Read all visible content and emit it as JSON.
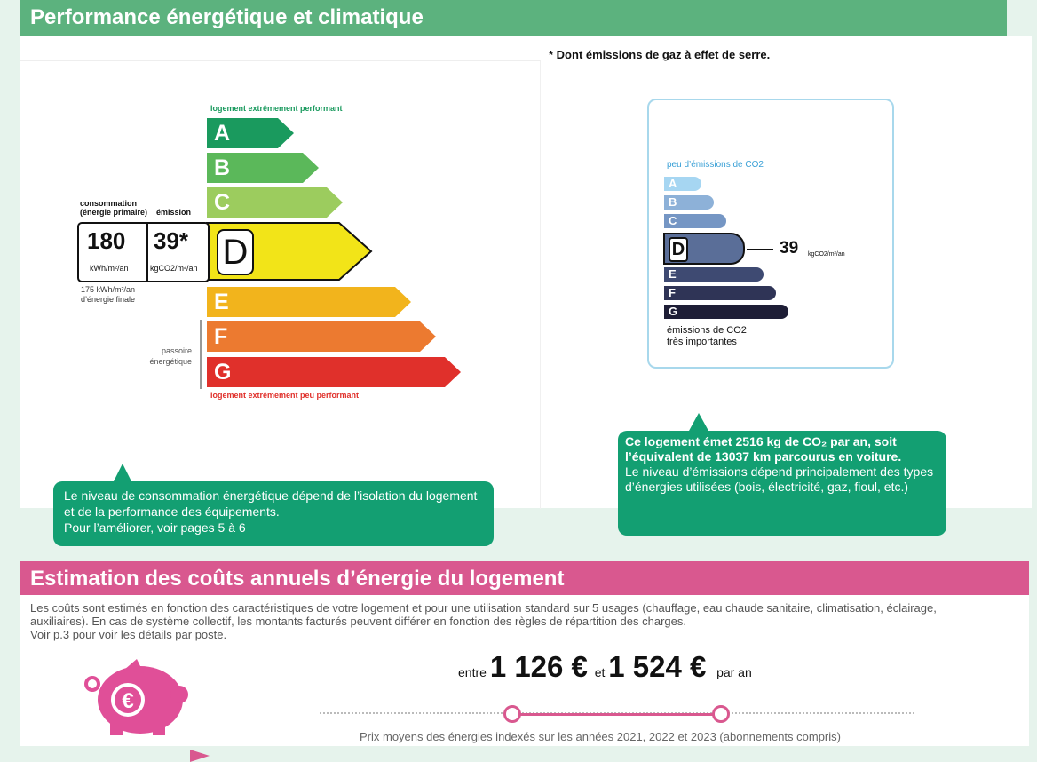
{
  "energy": {
    "header": "Performance énergétique et climatique",
    "footnote": "* Dont émissions de gaz à effet de serre.",
    "scale_top_label": "logement extrêmement performant",
    "scale_bottom_label": "logement extrêmement peu performant",
    "classes": [
      "A",
      "B",
      "C",
      "D",
      "E",
      "F",
      "G"
    ],
    "class_colors": [
      "#1a9a5e",
      "#5bb85a",
      "#9ccc5e",
      "#f2e418",
      "#f2b41c",
      "#ec7a30",
      "#e0302b"
    ],
    "current_class": "D",
    "consumption_label": "consommation\n(énergie primaire)",
    "emission_label": "émission",
    "consumption_value": "180",
    "emission_value": "39*",
    "consumption_unit": "kWh/m²/an",
    "emission_unit": "kgCO2/m²/an",
    "final_energy_note": "175 kWh/m²/an\nd’énergie finale",
    "passoire_label": "passoire\nénergétique",
    "tip": "Le niveau de consommation énergétique dépend de l’isolation du logement et de la performance des équipements.\nPour l’améliorer, voir pages 5 à 6"
  },
  "ges": {
    "top_label": "peu d’émissions de CO2",
    "bottom_label": "émissions de CO2\ntrès importantes",
    "classes": [
      "A",
      "B",
      "C",
      "D",
      "E",
      "F",
      "G"
    ],
    "class_colors": [
      "#a6d6f2",
      "#8db1d8",
      "#7596c4",
      "#5a6e98",
      "#3e4a72",
      "#2f3456",
      "#1e1e36"
    ],
    "current_class": "D",
    "value": "39",
    "unit": "kgCO2/m²/an",
    "tip_bold": "Ce logement émet 2516  kg de CO₂ par an, soit l’équivalent de 13037 km parcourus en voiture.",
    "tip_text": "Le niveau d’émissions dépend principalement des types d’énergies utilisées (bois, électricité, gaz, fioul, etc.)"
  },
  "costs": {
    "header": "Estimation des coûts annuels d’énergie du logement",
    "description": "Les coûts sont estimés en fonction des caractéristiques de votre logement et pour une utilisation standard sur 5 usages (chauffage, eau chaude sanitaire, climatisation, éclairage, auxiliaires). En cas de système collectif, les montants facturés peuvent différer en fonction des règles de répartition des charges.\nVoir p.3 pour voir les détails par poste.",
    "between": "entre",
    "low": "1 126 €",
    "and": "et",
    "high": "1 524 €",
    "per_year": "par an",
    "note": "Prix moyens des énergies indexés sur les années 2021, 2022 et 2023  (abonnements compris)",
    "piggy_icon": "piggy-bank-icon",
    "euro_symbol": "€"
  }
}
